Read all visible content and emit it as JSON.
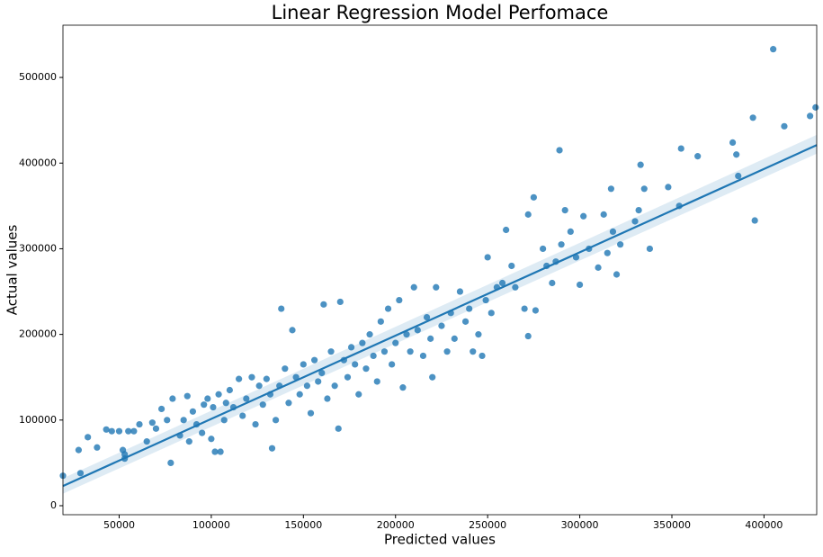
{
  "chart_data": {
    "type": "scatter",
    "title": "Linear Regression Model Perfomace",
    "x_label": "Predicted values",
    "y_label": "Actual values",
    "color": "#1f77b4",
    "xlim": [
      19500,
      428600
    ],
    "ylim": [
      -10500,
      561000
    ],
    "xticks": [
      50000,
      100000,
      150000,
      200000,
      250000,
      300000,
      350000,
      400000
    ],
    "yticks": [
      0,
      100000,
      200000,
      300000,
      400000,
      500000
    ],
    "x": [
      19500,
      28000,
      29000,
      33000,
      38000,
      43000,
      46000,
      50000,
      52000,
      53000,
      53000,
      55000,
      58000,
      61000,
      65000,
      68000,
      70000,
      73000,
      76000,
      78000,
      79000,
      83000,
      85000,
      87000,
      88000,
      90000,
      92000,
      95000,
      96000,
      98000,
      100000,
      101000,
      102000,
      104000,
      105000,
      107000,
      108000,
      110000,
      112000,
      115000,
      117000,
      119000,
      122000,
      124000,
      126000,
      128000,
      130000,
      132000,
      133000,
      135000,
      137000,
      138000,
      140000,
      142000,
      144000,
      146000,
      148000,
      150000,
      152000,
      154000,
      156000,
      158000,
      160000,
      161000,
      163000,
      165000,
      167000,
      169000,
      170000,
      172000,
      174000,
      176000,
      178000,
      180000,
      182000,
      184000,
      186000,
      188000,
      190000,
      192000,
      194000,
      196000,
      198000,
      200000,
      202000,
      204000,
      206000,
      208000,
      210000,
      212000,
      215000,
      217000,
      219000,
      220000,
      222000,
      225000,
      228000,
      230000,
      232000,
      235000,
      238000,
      240000,
      242000,
      245000,
      247000,
      249000,
      250000,
      252000,
      255000,
      258000,
      260000,
      263000,
      265000,
      270000,
      272000,
      272000,
      275000,
      276000,
      280000,
      282000,
      285000,
      287000,
      289000,
      290000,
      292000,
      295000,
      298000,
      300000,
      302000,
      305000,
      310000,
      313000,
      315000,
      317000,
      318000,
      320000,
      322000,
      330000,
      332000,
      333000,
      335000,
      338000,
      348000,
      354000,
      355000,
      364000,
      383000,
      385000,
      386000,
      394000,
      395000,
      405000,
      411000,
      425000,
      428000
    ],
    "values": [
      35000,
      65000,
      38000,
      80000,
      68000,
      89000,
      87000,
      87000,
      65000,
      55000,
      60000,
      87000,
      87000,
      95000,
      75000,
      97000,
      90000,
      113000,
      100000,
      50000,
      125000,
      82000,
      100000,
      128000,
      75000,
      110000,
      95000,
      85000,
      118000,
      125000,
      78000,
      115000,
      63000,
      130000,
      63000,
      100000,
      120000,
      135000,
      115000,
      148000,
      105000,
      125000,
      150000,
      95000,
      140000,
      118000,
      148000,
      130000,
      67000,
      100000,
      140000,
      230000,
      160000,
      120000,
      205000,
      150000,
      130000,
      165000,
      140000,
      108000,
      170000,
      145000,
      155000,
      235000,
      125000,
      180000,
      140000,
      90000,
      238000,
      170000,
      150000,
      185000,
      165000,
      130000,
      190000,
      160000,
      200000,
      175000,
      145000,
      215000,
      180000,
      230000,
      165000,
      190000,
      240000,
      138000,
      200000,
      180000,
      255000,
      205000,
      175000,
      220000,
      195000,
      150000,
      255000,
      210000,
      180000,
      225000,
      195000,
      250000,
      215000,
      230000,
      180000,
      200000,
      175000,
      240000,
      290000,
      225000,
      255000,
      260000,
      322000,
      280000,
      255000,
      230000,
      198000,
      340000,
      360000,
      228000,
      300000,
      280000,
      260000,
      285000,
      415000,
      305000,
      345000,
      320000,
      290000,
      258000,
      338000,
      300000,
      278000,
      340000,
      295000,
      370000,
      320000,
      270000,
      305000,
      332000,
      345000,
      398000,
      370000,
      300000,
      372000,
      350000,
      417000,
      408000,
      424000,
      410000,
      385000,
      453000,
      333000,
      533000,
      443000,
      455000,
      465000
    ],
    "regression": {
      "x": [
        19500,
        428600
      ],
      "y": [
        23000,
        421000
      ],
      "band_lower": [
        14000,
        411000
      ],
      "band_upper": [
        32000,
        433000
      ]
    }
  }
}
